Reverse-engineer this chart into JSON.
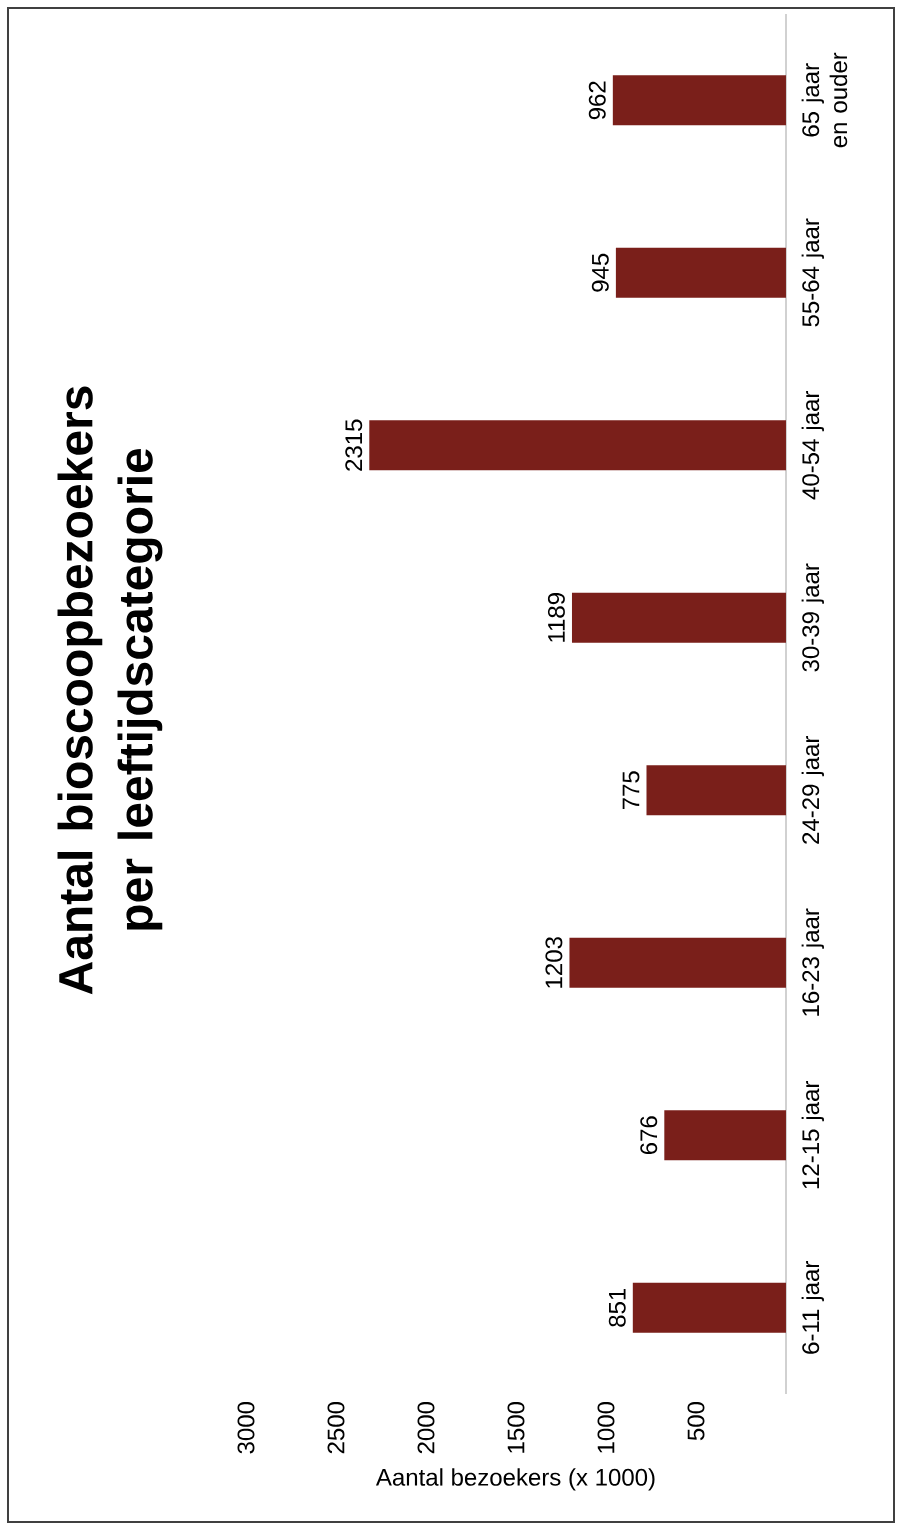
{
  "chart_data": {
    "type": "bar",
    "orientation": "horizontal",
    "title": "Aantal bioscoopbezoekers per leeftijdscategorie",
    "xlabel": "Aantal bezoekers (x 1000)",
    "categories": [
      "65 jaar en ouder",
      "55-64 jaar",
      "40-54 jaar",
      "30-39 jaar",
      "24-29 jaar",
      "16-23 jaar",
      "12-15 jaar",
      "6-11 jaar"
    ],
    "values": [
      962,
      945,
      2315,
      1189,
      775,
      1203,
      676,
      851
    ],
    "color": "#7a1f1a",
    "xlim": [
      3000,
      0
    ],
    "xticks": [
      3000,
      2500,
      2000,
      1500,
      1000,
      500
    ],
    "data_labels": true
  }
}
